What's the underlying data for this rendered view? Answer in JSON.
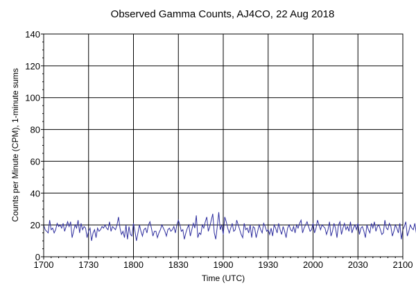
{
  "chart_data": {
    "type": "line",
    "title": "Observed Gamma Counts, AJ4CO, 22 Aug 2018",
    "xlabel": "Time (UTC)",
    "ylabel": "Counts per Minute (CPM), 1-minute sums",
    "xlim": [
      "1700",
      "2100"
    ],
    "ylim": [
      0,
      140
    ],
    "x_ticks": [
      "1700",
      "1730",
      "1800",
      "1830",
      "1900",
      "1930",
      "2000",
      "2030",
      "2100"
    ],
    "y_ticks": [
      0,
      20,
      40,
      60,
      80,
      100,
      120,
      140
    ],
    "grid": true,
    "legend": "none",
    "series": [
      {
        "color": "#2e2e9e",
        "start_time": "1700",
        "interval_minutes": 1,
        "values": [
          20,
          17,
          16,
          15,
          23,
          17,
          18,
          15,
          17,
          21,
          19,
          20,
          18,
          21,
          16,
          19,
          22,
          19,
          22,
          12,
          16,
          20,
          18,
          23,
          15,
          21,
          17,
          19,
          18,
          12,
          16,
          18,
          10,
          15,
          17,
          12,
          18,
          16,
          17,
          19,
          18,
          20,
          18,
          17,
          22,
          16,
          19,
          18,
          17,
          20,
          25,
          18,
          14,
          16,
          12,
          20,
          11,
          19,
          14,
          13,
          21,
          16,
          10,
          15,
          20,
          16,
          13,
          17,
          18,
          15,
          20,
          22,
          18,
          13,
          16,
          16,
          12,
          15,
          17,
          20,
          18,
          16,
          13,
          17,
          18,
          16,
          17,
          19,
          15,
          20,
          23,
          20,
          16,
          17,
          11,
          15,
          18,
          20,
          13,
          17,
          21,
          18,
          26,
          12,
          15,
          14,
          20,
          18,
          22,
          25,
          16,
          19,
          23,
          27,
          15,
          11,
          19,
          28,
          17,
          20,
          14,
          25,
          22,
          18,
          15,
          18,
          21,
          16,
          17,
          23,
          20,
          17,
          14,
          12,
          21,
          17,
          18,
          15,
          20,
          12,
          19,
          18,
          12,
          16,
          20,
          17,
          15,
          21,
          19,
          16,
          17,
          14,
          18,
          13,
          20,
          18,
          15,
          21,
          17,
          14,
          19,
          16,
          12,
          18,
          20,
          17,
          16,
          19,
          15,
          20,
          18,
          21,
          23,
          15,
          18,
          20,
          22,
          19,
          16,
          17,
          21,
          15,
          18,
          23,
          20,
          17,
          20,
          19,
          18,
          14,
          17,
          22,
          13,
          16,
          21,
          18,
          12,
          20,
          22,
          14,
          18,
          21,
          17,
          19,
          16,
          22,
          15,
          18,
          20,
          17,
          21,
          14,
          18,
          19,
          16,
          12,
          20,
          17,
          15,
          21,
          18,
          22,
          16,
          19,
          20,
          17,
          14,
          15,
          23,
          18,
          17,
          21,
          19,
          13,
          16,
          20,
          18,
          15,
          21,
          11,
          17,
          19,
          22,
          13,
          16,
          20,
          18,
          17,
          21,
          15,
          12,
          18,
          21,
          16,
          19,
          17,
          20,
          14,
          22,
          18,
          15,
          21,
          17,
          19,
          12,
          16,
          20,
          18,
          22,
          15,
          17,
          19,
          13,
          18,
          21,
          16,
          20,
          17,
          14,
          19,
          18,
          21,
          15,
          12,
          17,
          20,
          18,
          16,
          19,
          14,
          21,
          17,
          18,
          15,
          20,
          11,
          16,
          19,
          22,
          17,
          18,
          15,
          20,
          13,
          17,
          21,
          16,
          19,
          18,
          14,
          20,
          17,
          16,
          21,
          12,
          18,
          19,
          15,
          20,
          17,
          22,
          16,
          13,
          18,
          20,
          21,
          15,
          17,
          19,
          14,
          18,
          20,
          16,
          21,
          17,
          15,
          19,
          18,
          13,
          20,
          17,
          16,
          21,
          14,
          18,
          20,
          19,
          15,
          17,
          12,
          21,
          18,
          16,
          20,
          17,
          19,
          14,
          18,
          15,
          21,
          16,
          20,
          12,
          18,
          17,
          19,
          22,
          15,
          20,
          18,
          16,
          21,
          14,
          17,
          19,
          20,
          16,
          18,
          13,
          21,
          17,
          19,
          15,
          20,
          18,
          16,
          14,
          21,
          17,
          19,
          20,
          16,
          11,
          18,
          21,
          15,
          20,
          17,
          19,
          14,
          18,
          16,
          21,
          12,
          19,
          17,
          20,
          15,
          18,
          10,
          15
        ]
      }
    ]
  }
}
